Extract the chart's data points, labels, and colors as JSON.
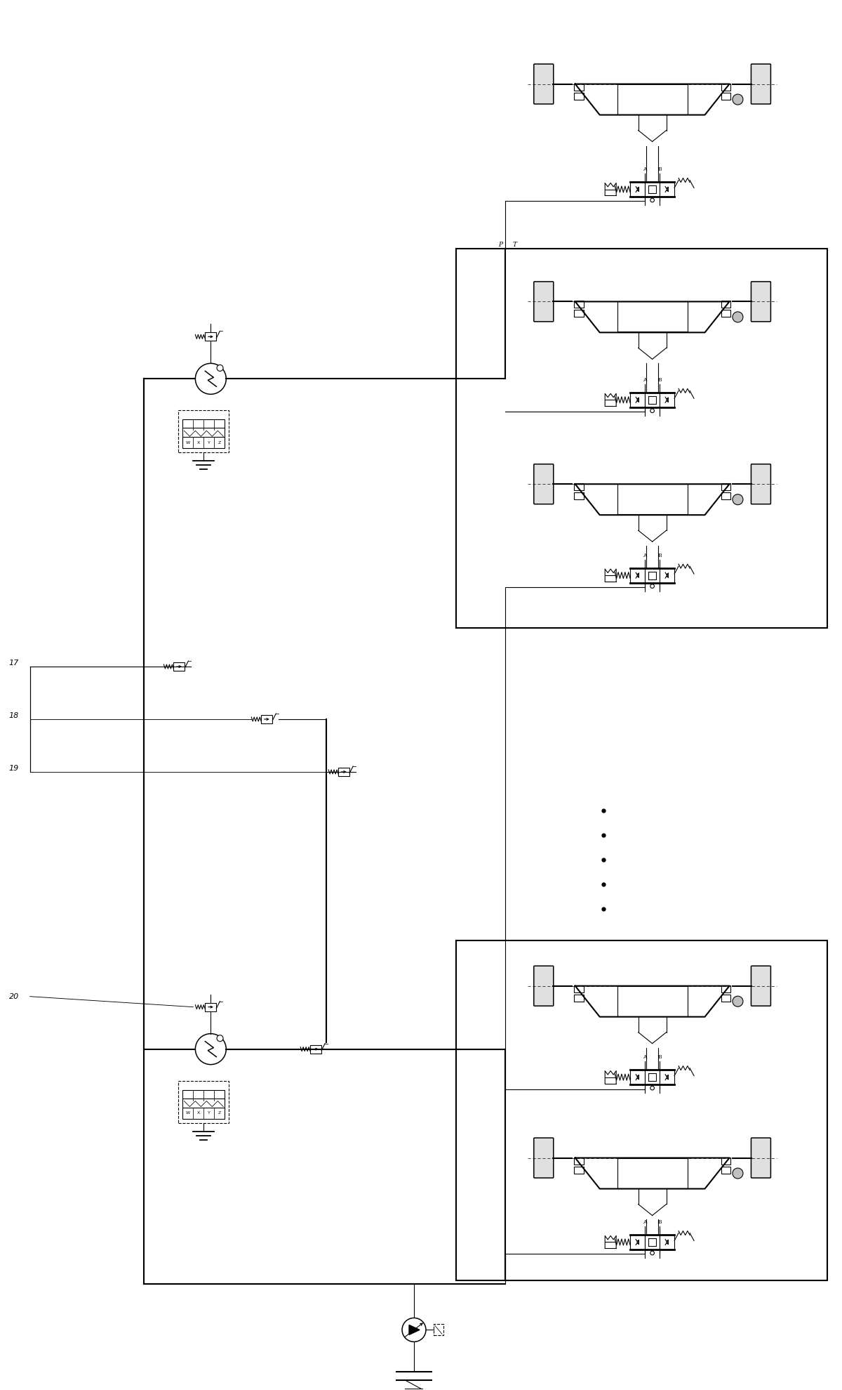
{
  "bg_color": "#ffffff",
  "line_color": "#000000",
  "fig_width": 12.0,
  "fig_height": 19.79,
  "dpi": 100,
  "labels_numbered": [
    "17",
    "18",
    "19",
    "20"
  ],
  "pt_label": [
    "P",
    "T"
  ],
  "ab_label": [
    "A",
    "B"
  ]
}
